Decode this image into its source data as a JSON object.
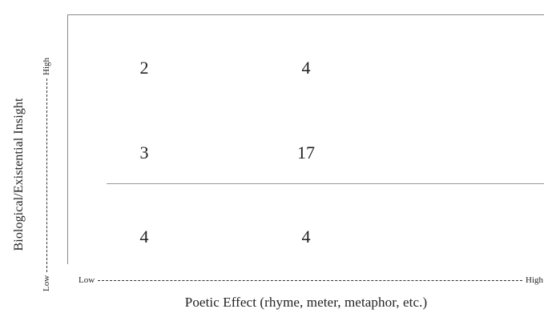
{
  "diagram": {
    "y_axis": {
      "title": "Biological/Existential Insight",
      "low": "Low",
      "high": "High"
    },
    "x_axis": {
      "title": "Poetic Effect (rhyme, meter, metaphor, etc.)",
      "low": "Low",
      "high": "High"
    },
    "rows": [
      {
        "cells": [
          "2",
          "4",
          ""
        ]
      },
      {
        "cells": [
          "3",
          "17",
          ""
        ]
      },
      {
        "cells": [
          "4",
          "4",
          ""
        ]
      }
    ]
  }
}
